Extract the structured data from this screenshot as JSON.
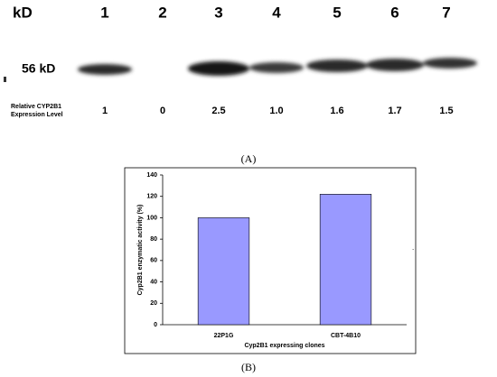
{
  "blot": {
    "unit_header": "kD",
    "lanes": [
      "1",
      "2",
      "3",
      "4",
      "5",
      "6",
      "7"
    ],
    "marker": "56 kD",
    "row_label": [
      "Relative CYP2B1",
      "Expression Level"
    ],
    "levels": [
      "1",
      "0",
      "2.5",
      "1.0",
      "1.6",
      "1.7",
      "1.5"
    ],
    "caption": "(A)"
  },
  "chart_data": {
    "type": "bar",
    "categories": [
      "22P1G",
      "CBT-4B10"
    ],
    "values": [
      100,
      122
    ],
    "color": "#9999ff",
    "ylim": [
      0,
      140
    ],
    "yticks": [
      0,
      20,
      40,
      60,
      80,
      100,
      120,
      140
    ],
    "xlabel": "Cyp2B1 expressing clones",
    "ylabel": "Cyp2B1 enzymatic activity (%)",
    "caption": "(B)"
  }
}
